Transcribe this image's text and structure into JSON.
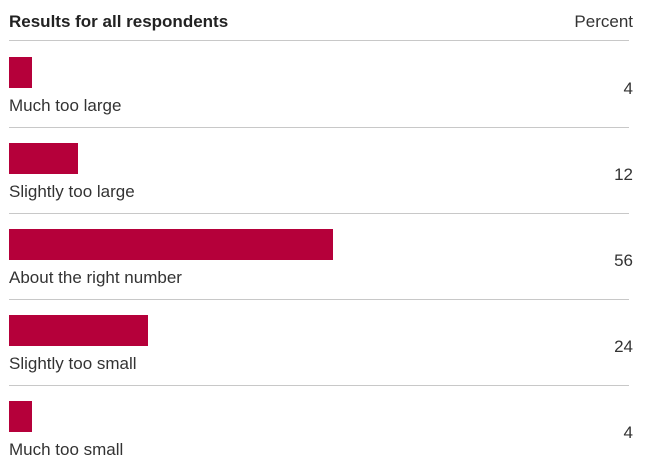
{
  "chart_data": {
    "type": "bar",
    "orientation": "horizontal",
    "title": "Results for all respondents",
    "value_column_label": "Percent",
    "categories": [
      "Much too large",
      "Slightly too large",
      "About the right number",
      "Slightly too small",
      "Much too small"
    ],
    "values": [
      4,
      12,
      56,
      24,
      4
    ],
    "value_labels": [
      "4",
      "12",
      "56",
      "24",
      "4"
    ],
    "xlim": [
      0,
      100
    ],
    "grid": false,
    "colors": {
      "bar": "#b5003a"
    }
  }
}
